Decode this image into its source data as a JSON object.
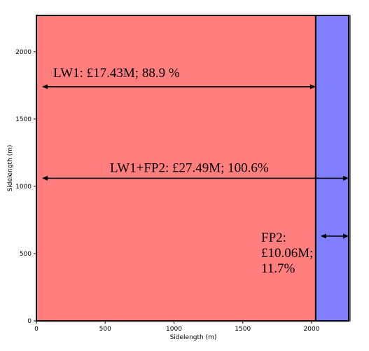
{
  "chart_data": {
    "type": "bar",
    "title": "",
    "xlabel": "Sidelength (m)",
    "ylabel": "Sidelength (m)",
    "xlim": [
      0,
      2280
    ],
    "ylim": [
      0,
      2270
    ],
    "xticks": [
      0,
      500,
      1000,
      1500,
      2000
    ],
    "yticks": [
      0,
      500,
      1000,
      1500,
      2000
    ],
    "grid": false,
    "regions": [
      {
        "label": "LW1",
        "x_start": 0,
        "x_end": 2030,
        "color": "#ff7f7f"
      },
      {
        "label": "FP2",
        "x_start": 2030,
        "x_end": 2270,
        "color": "#7f7fff"
      }
    ],
    "annotations": [
      {
        "text": "LW1: £17.43M; 88.9 %",
        "arrow_x": [
          0,
          2030
        ],
        "arrow_y": 1740
      },
      {
        "text": "LW1+FP2: £27.49M; 100.6%",
        "arrow_x": [
          0,
          2270
        ],
        "arrow_y": 1060
      },
      {
        "text_lines": [
          "FP2:",
          "£10.06M;",
          "11.7%"
        ],
        "arrow_x": [
          2030,
          2270
        ],
        "arrow_y": 630
      }
    ],
    "colors": {
      "lw1": "#ff7f7f",
      "fp2": "#7f7fff",
      "edge": "#000000"
    }
  }
}
